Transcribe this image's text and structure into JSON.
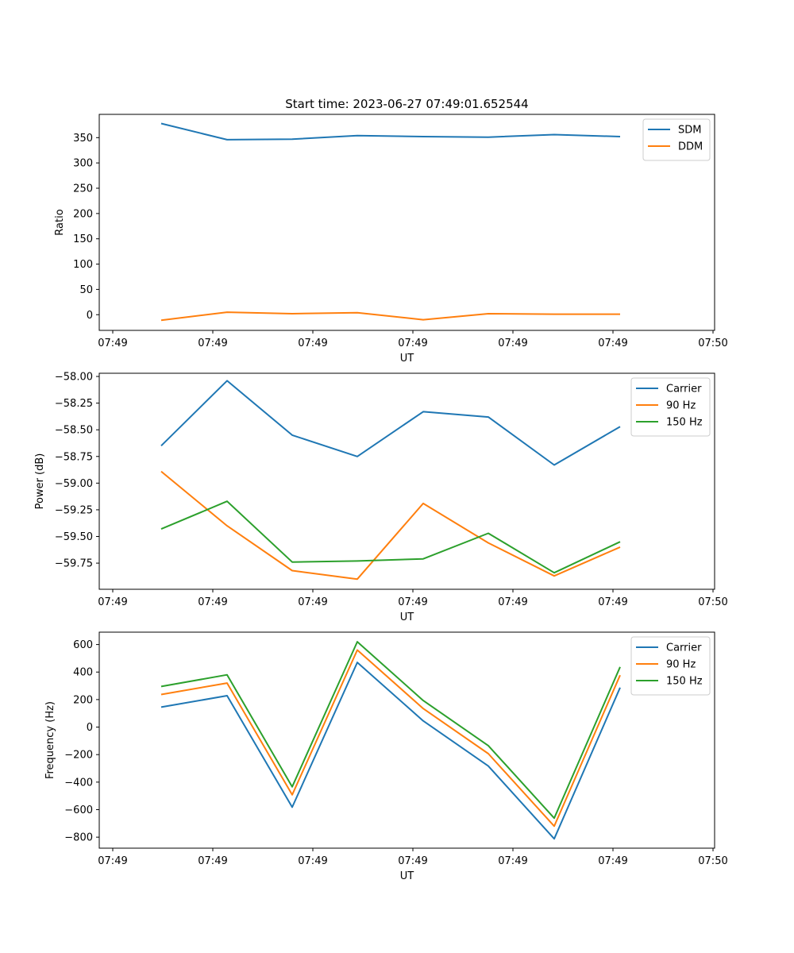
{
  "figure_title": "Start time: 2023-06-27 07:49:01.652544",
  "chart_data": [
    {
      "type": "line",
      "title": "Start time: 2023-06-27 07:49:01.652544",
      "xlabel": "UT",
      "ylabel": "Ratio",
      "legend": "top-right",
      "grid": false,
      "x_tick_labels": [
        "07:49",
        "07:49",
        "07:49",
        "07:49",
        "07:49",
        "07:49",
        "07:50"
      ],
      "y_ticks": [
        0,
        50,
        100,
        150,
        200,
        250,
        300,
        350
      ],
      "ylim": [
        -31,
        396
      ],
      "series": [
        {
          "name": "SDM",
          "color": "#1f77b4",
          "values": [
            378,
            346,
            347,
            354,
            352,
            351,
            356,
            352
          ]
        },
        {
          "name": "DDM",
          "color": "#ff7f0e",
          "values": [
            -11,
            5,
            2,
            4,
            -10,
            2,
            1,
            1
          ]
        }
      ]
    },
    {
      "type": "line",
      "xlabel": "UT",
      "ylabel": "Power (dB)",
      "legend": "top-right",
      "grid": false,
      "x_tick_labels": [
        "07:49",
        "07:49",
        "07:49",
        "07:49",
        "07:49",
        "07:49",
        "07:50"
      ],
      "y_ticks": [
        -59.75,
        -59.5,
        -59.25,
        -59.0,
        -58.75,
        -58.5,
        -58.25,
        -58.0
      ],
      "y_tick_labels": [
        "−59.75",
        "−59.50",
        "−59.25",
        "−59.00",
        "−58.75",
        "−58.50",
        "−58.25",
        "−58.00"
      ],
      "ylim": [
        -59.995,
        -57.97
      ],
      "series": [
        {
          "name": "Carrier",
          "color": "#1f77b4",
          "values": [
            -58.65,
            -58.04,
            -58.55,
            -58.75,
            -58.33,
            -58.38,
            -58.83,
            -58.47
          ]
        },
        {
          "name": "90 Hz",
          "color": "#ff7f0e",
          "values": [
            -58.89,
            -59.4,
            -59.82,
            -59.9,
            -59.19,
            -59.56,
            -59.87,
            -59.6
          ]
        },
        {
          "name": "150 Hz",
          "color": "#2ca02c",
          "values": [
            -59.43,
            -59.17,
            -59.74,
            -59.73,
            -59.71,
            -59.47,
            -59.84,
            -59.55
          ]
        }
      ]
    },
    {
      "type": "line",
      "xlabel": "UT",
      "ylabel": "Frequency (Hz)",
      "legend": "top-right",
      "grid": false,
      "x_tick_labels": [
        "07:49",
        "07:49",
        "07:49",
        "07:49",
        "07:49",
        "07:49",
        "07:50"
      ],
      "y_ticks": [
        -800,
        -600,
        -400,
        -200,
        0,
        200,
        400,
        600
      ],
      "y_tick_labels": [
        "−800",
        "−600",
        "−400",
        "−200",
        "0",
        "200",
        "400",
        "600"
      ],
      "ylim": [
        -880,
        690
      ],
      "series": [
        {
          "name": "Carrier",
          "color": "#1f77b4",
          "values": [
            145,
            228,
            -582,
            470,
            45,
            -283,
            -812,
            287
          ]
        },
        {
          "name": "90 Hz",
          "color": "#ff7f0e",
          "values": [
            237,
            320,
            -492,
            560,
            135,
            -193,
            -720,
            377
          ]
        },
        {
          "name": "150 Hz",
          "color": "#2ca02c",
          "values": [
            295,
            380,
            -434,
            620,
            193,
            -135,
            -662,
            437
          ]
        }
      ]
    }
  ]
}
